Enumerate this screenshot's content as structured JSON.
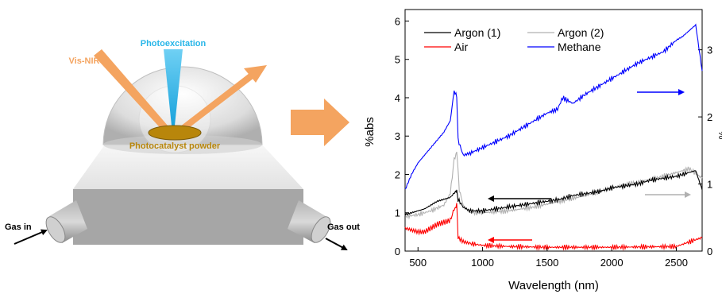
{
  "setup": {
    "vis_nir_label": "Vis-NIR",
    "photoexcitation_label": "Photoexcitation",
    "powder_label": "Photocatalyst powder",
    "gas_in_label": "Gas in",
    "gas_out_label": "Gas out",
    "colors": {
      "vis_nir": "#f4a460",
      "photoexcitation": "#29b6e8",
      "powder": "#b8860b",
      "arrow": "#f4a460"
    }
  },
  "chart_data": {
    "type": "line",
    "xlabel": "Wavelength (nm)",
    "ylabel_left": "%abs",
    "ylabel_right": "%",
    "xlim": [
      400,
      2700
    ],
    "ylim_left": [
      0,
      6.3
    ],
    "ylim_right": [
      0,
      3.6
    ],
    "x_ticks": [
      500,
      1000,
      1500,
      2000,
      2500
    ],
    "y_ticks_left": [
      0,
      1,
      2,
      3,
      4,
      5,
      6
    ],
    "y_ticks_right": [
      0,
      1,
      2,
      3
    ],
    "legend": [
      "Argon (1)",
      "Argon (2)",
      "Air",
      "Methane"
    ],
    "series": [
      {
        "name": "Argon (1)",
        "color": "#000000",
        "axis": "left",
        "x": [
          400,
          450,
          500,
          550,
          600,
          650,
          700,
          750,
          790,
          800,
          810,
          850,
          900,
          1000,
          1100,
          1200,
          1300,
          1400,
          1500,
          1600,
          1700,
          1800,
          1900,
          2000,
          2100,
          2200,
          2300,
          2400,
          2500,
          2600,
          2650,
          2700
        ],
        "y": [
          0.95,
          1.0,
          1.05,
          1.1,
          1.2,
          1.3,
          1.35,
          1.4,
          1.55,
          1.6,
          1.35,
          1.15,
          1.05,
          1.05,
          1.1,
          1.15,
          1.2,
          1.25,
          1.3,
          1.35,
          1.45,
          1.5,
          1.55,
          1.65,
          1.7,
          1.75,
          1.85,
          1.9,
          1.95,
          2.05,
          2.1,
          1.6
        ]
      },
      {
        "name": "Argon (2)",
        "color": "#b0b0b0",
        "axis": "left",
        "x": [
          400,
          500,
          600,
          700,
          750,
          780,
          800,
          820,
          850,
          900,
          1000,
          1200,
          1400,
          1600,
          1800,
          2000,
          2200,
          2400,
          2600,
          2700
        ],
        "y": [
          0.9,
          0.95,
          1.05,
          1.2,
          1.5,
          2.4,
          2.6,
          1.6,
          1.2,
          1.0,
          1.0,
          1.05,
          1.15,
          1.3,
          1.45,
          1.65,
          1.8,
          1.95,
          2.15,
          1.9
        ]
      },
      {
        "name": "Air",
        "color": "#ff0000",
        "axis": "left",
        "x": [
          400,
          450,
          500,
          550,
          600,
          650,
          700,
          750,
          780,
          800,
          810,
          850,
          900,
          1000,
          1200,
          1500,
          2000,
          2500,
          2650,
          2700
        ],
        "y": [
          0.6,
          0.55,
          0.5,
          0.5,
          0.6,
          0.7,
          0.75,
          0.8,
          1.1,
          1.2,
          0.35,
          0.25,
          0.2,
          0.15,
          0.12,
          0.1,
          0.1,
          0.12,
          0.3,
          0.35
        ]
      },
      {
        "name": "Methane",
        "color": "#0000ff",
        "axis": "left",
        "x": [
          400,
          450,
          500,
          550,
          600,
          650,
          700,
          750,
          780,
          800,
          810,
          850,
          900,
          1000,
          1100,
          1200,
          1300,
          1400,
          1500,
          1580,
          1620,
          1700,
          1800,
          1900,
          2000,
          2100,
          2200,
          2300,
          2400,
          2500,
          2550,
          2600,
          2650,
          2700
        ],
        "y": [
          1.6,
          2.0,
          2.3,
          2.5,
          2.7,
          2.9,
          3.1,
          3.4,
          4.2,
          4.0,
          2.9,
          2.5,
          2.55,
          2.7,
          2.85,
          3.0,
          3.2,
          3.4,
          3.6,
          3.7,
          4.0,
          3.85,
          4.1,
          4.3,
          4.5,
          4.7,
          4.9,
          5.05,
          5.2,
          5.5,
          5.6,
          5.75,
          5.9,
          4.7
        ]
      }
    ],
    "direction_arrows": [
      {
        "series": "Methane",
        "points_to": "right",
        "color": "#0000ff"
      },
      {
        "series": "Argon (1)",
        "points_to": "left",
        "color": "#000000"
      },
      {
        "series": "Argon (2)",
        "points_to": "right",
        "color": "#b0b0b0"
      },
      {
        "series": "Air",
        "points_to": "left",
        "color": "#ff0000"
      }
    ]
  }
}
